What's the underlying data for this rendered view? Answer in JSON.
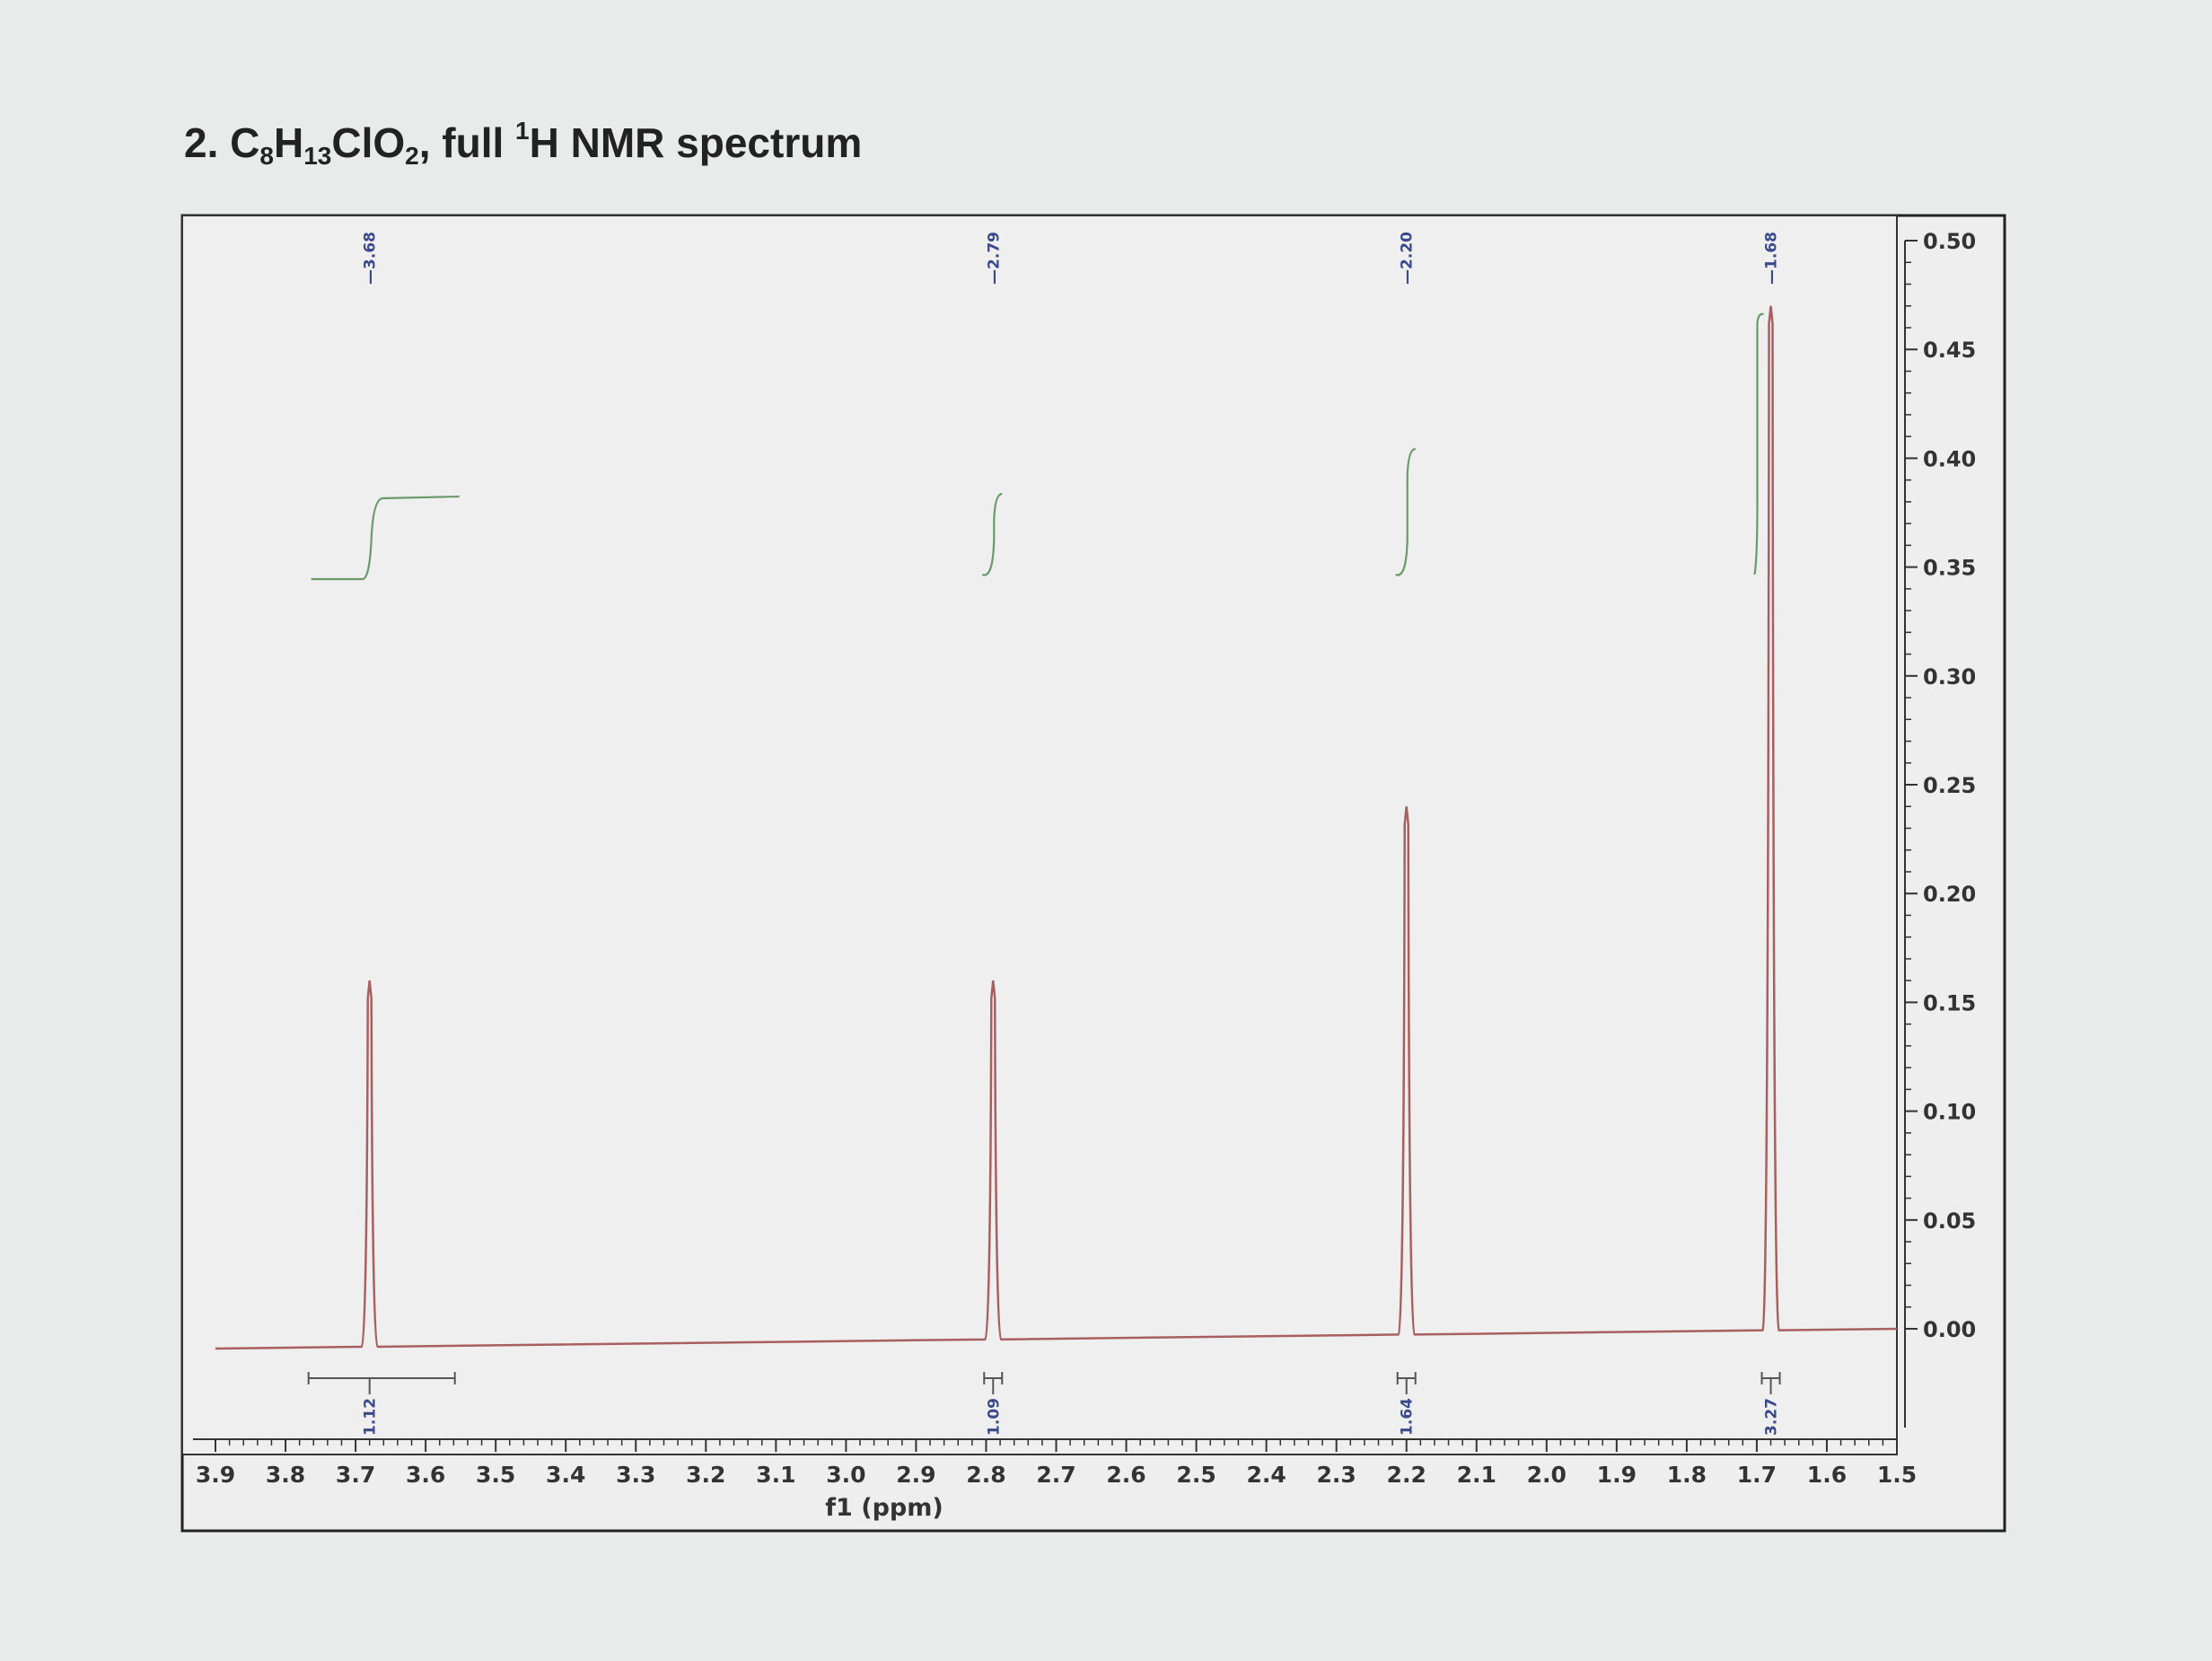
{
  "title": {
    "prefix": "2. ",
    "c": "C",
    "c_count": "8",
    "h": "H",
    "h_count": "13",
    "clo": "ClO",
    "o_count": "2",
    "mid": ", full ",
    "mass": "1",
    "rest": "H NMR spectrum"
  },
  "chart_data": {
    "type": "line",
    "xlabel": "f1 (ppm)",
    "ylabel": "",
    "xlim": [
      3.9,
      1.5
    ],
    "ylim": [
      0.0,
      0.5
    ],
    "x_ticks": [
      "3.9",
      "3.8",
      "3.7",
      "3.6",
      "3.5",
      "3.4",
      "3.3",
      "3.2",
      "3.1",
      "3.0",
      "2.9",
      "2.8",
      "2.7",
      "2.6",
      "2.5",
      "2.4",
      "2.3",
      "2.2",
      "2.1",
      "2.0",
      "1.9",
      "1.8",
      "1.7",
      "1.6",
      "1.5"
    ],
    "y_ticks": [
      "0.00",
      "0.05",
      "0.10",
      "0.15",
      "0.20",
      "0.25",
      "0.30",
      "0.35",
      "0.40",
      "0.45",
      "0.50"
    ],
    "peaks": [
      {
        "shift": 3.68,
        "label": "3.68",
        "height": 0.16,
        "integral": "1.12"
      },
      {
        "shift": 2.79,
        "label": "2.79",
        "height": 0.16,
        "integral": "1.09"
      },
      {
        "shift": 2.2,
        "label": "2.20",
        "height": 0.24,
        "integral": "1.64"
      },
      {
        "shift": 1.68,
        "label": "1.68",
        "height": 0.47,
        "integral": "3.27"
      }
    ],
    "colors": {
      "spectrum": "#a85f5f",
      "integral": "#6a9a6a",
      "labels": "#3a4a8a"
    }
  }
}
